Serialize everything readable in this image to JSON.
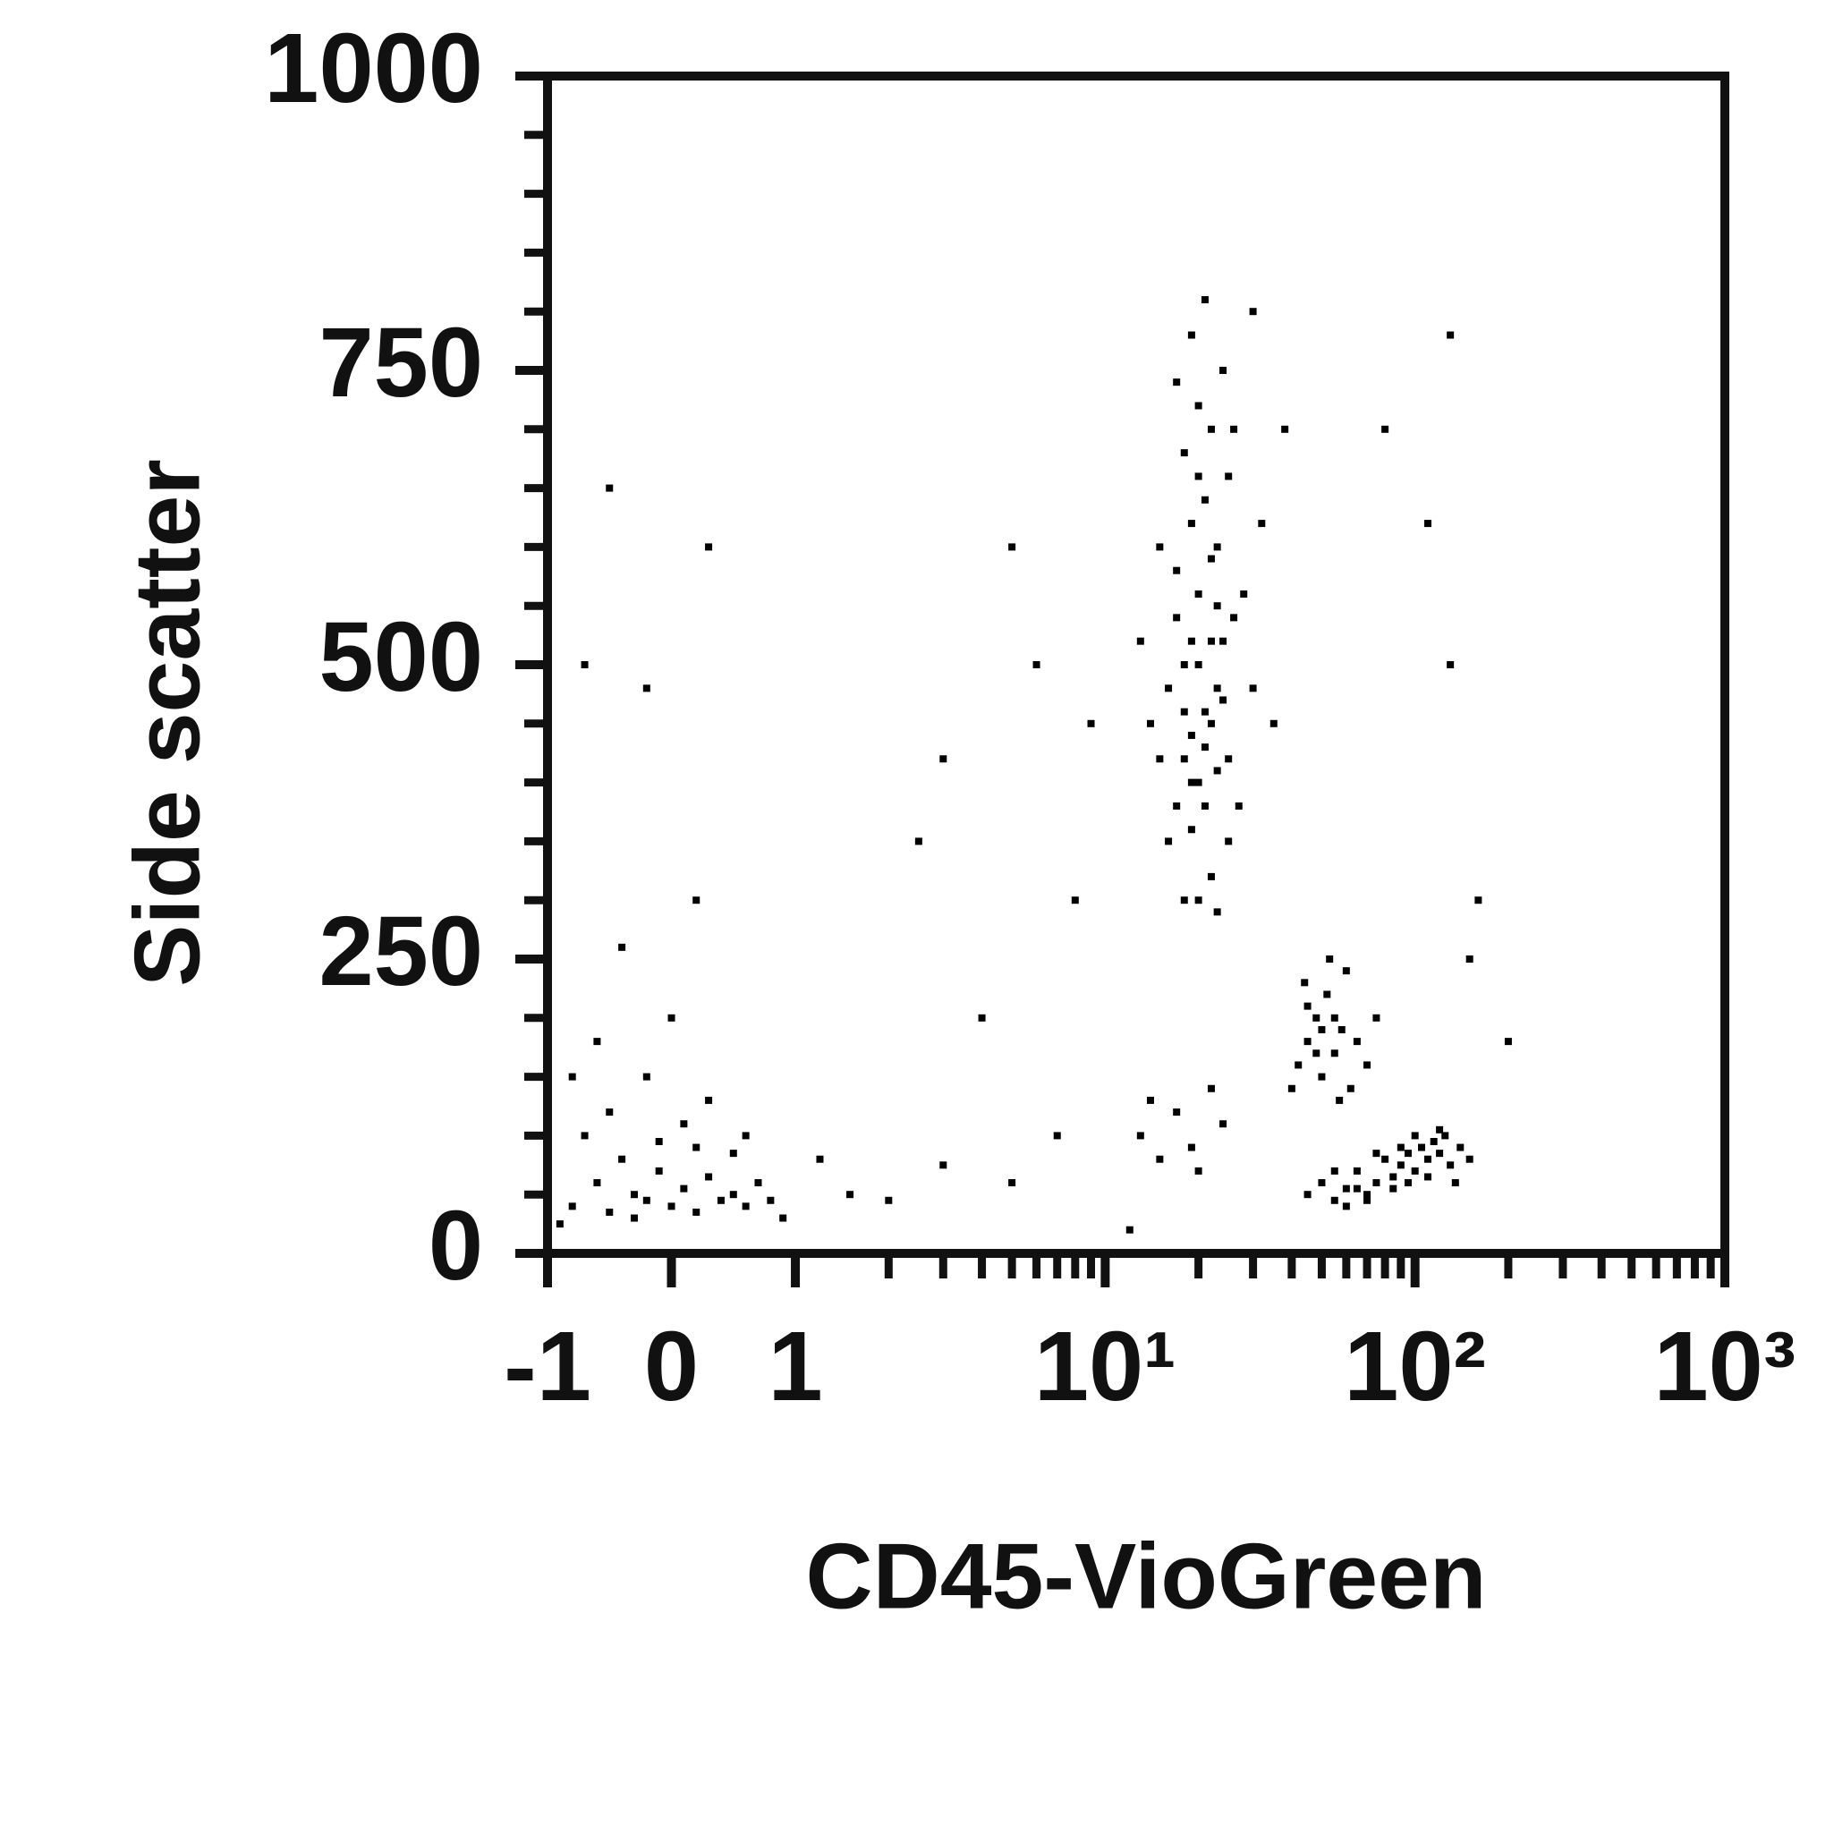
{
  "chart_data": {
    "type": "scatter",
    "x_label": "CD45-VioGreen",
    "y_label": "Side scatter",
    "color": "#000000",
    "xscale": "symlog",
    "linthresh": 1,
    "linscale": 0.4,
    "xlim": [
      -1,
      1000
    ],
    "ylim": [
      0,
      1000
    ],
    "xticks": [
      -1,
      0,
      1,
      {
        "value": 10,
        "label": "10¹"
      },
      {
        "value": 100,
        "label": "10²"
      },
      {
        "value": 1000,
        "label": "10³"
      }
    ],
    "yticks": [
      0,
      250,
      500,
      750,
      1000
    ],
    "xminorticks": [
      2,
      3,
      4,
      5,
      6,
      7,
      8,
      9,
      20,
      30,
      40,
      50,
      60,
      70,
      80,
      90,
      200,
      300,
      400,
      500,
      600,
      700,
      800,
      900
    ],
    "yminorticks": [
      50,
      100,
      150,
      200,
      300,
      350,
      400,
      450,
      550,
      600,
      650,
      700,
      800,
      850,
      900,
      950
    ],
    "x": [
      -0.8,
      -0.6,
      -0.5,
      -0.4,
      -0.3,
      -0.2,
      -0.1,
      0,
      0.1,
      0.2,
      0.3,
      0.4,
      0.5,
      0.6,
      0.7,
      0.8,
      -0.7,
      -0.5,
      -0.2,
      0.1,
      0.3,
      -0.9,
      -0.3,
      0.2,
      0.5,
      -0.6,
      0,
      -0.4,
      0.2,
      -0.7,
      -0.2,
      0.3,
      -0.5,
      0.9,
      1.5,
      2,
      1.2,
      -0.8,
      0.6,
      -0.1,
      18,
      22,
      25,
      17,
      20,
      23,
      15,
      19,
      21,
      24,
      16,
      18,
      22,
      26,
      20,
      17,
      23,
      19,
      21,
      25,
      18,
      22,
      20,
      24,
      19,
      21,
      16,
      27,
      14,
      30,
      13,
      28,
      15,
      32,
      20,
      23,
      18,
      21,
      19,
      23,
      17,
      25,
      20,
      26,
      17,
      22,
      24,
      19,
      21,
      18,
      20,
      22,
      19,
      23,
      35,
      38,
      30,
      42,
      45,
      48,
      50,
      52,
      55,
      58,
      60,
      62,
      45,
      50,
      55,
      48,
      65,
      70,
      44,
      53,
      57,
      40,
      75,
      45,
      50,
      55,
      60,
      65,
      70,
      75,
      80,
      85,
      90,
      95,
      100,
      105,
      110,
      115,
      120,
      125,
      130,
      140,
      150,
      60,
      70,
      85,
      95,
      110,
      55,
      75,
      100,
      120,
      135,
      90,
      65,
      13,
      15,
      17,
      19,
      22,
      14,
      20,
      24,
      5,
      3,
      8,
      6,
      2.5,
      4,
      7,
      9,
      150,
      200,
      160,
      130,
      110,
      80,
      130,
      3,
      5,
      12
    ],
    "y": [
      40,
      60,
      35,
      80,
      50,
      45,
      70,
      40,
      55,
      35,
      65,
      45,
      50,
      40,
      60,
      45,
      100,
      120,
      150,
      110,
      130,
      25,
      30,
      90,
      85,
      180,
      200,
      260,
      300,
      500,
      480,
      600,
      650,
      30,
      50,
      45,
      80,
      150,
      100,
      95,
      300,
      320,
      350,
      380,
      400,
      410,
      420,
      440,
      460,
      470,
      480,
      500,
      520,
      540,
      560,
      580,
      600,
      620,
      640,
      660,
      680,
      700,
      720,
      750,
      780,
      810,
      350,
      380,
      450,
      480,
      520,
      560,
      600,
      620,
      300,
      290,
      420,
      380,
      520,
      480,
      540,
      420,
      660,
      700,
      740,
      590,
      520,
      360,
      430,
      460,
      500,
      450,
      400,
      550,
      450,
      700,
      800,
      160,
      180,
      200,
      150,
      220,
      170,
      190,
      240,
      140,
      210,
      190,
      200,
      170,
      180,
      160,
      230,
      250,
      130,
      140,
      200,
      50,
      60,
      45,
      55,
      70,
      50,
      60,
      80,
      65,
      75,
      85,
      70,
      90,
      80,
      95,
      85,
      100,
      75,
      90,
      80,
      40,
      45,
      55,
      60,
      65,
      70,
      85,
      100,
      105,
      60,
      90,
      55,
      100,
      80,
      120,
      90,
      140,
      130,
      70,
      110,
      600,
      420,
      300,
      500,
      350,
      200,
      100,
      450,
      250,
      180,
      300,
      500,
      620,
      700,
      780,
      75,
      60,
      20
    ]
  }
}
